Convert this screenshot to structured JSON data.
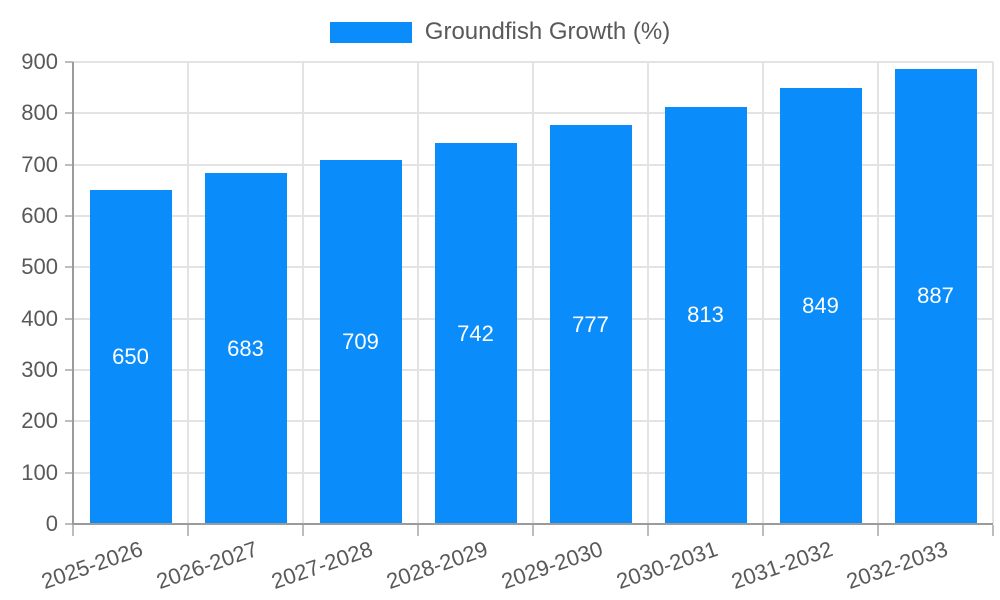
{
  "chart_data": {
    "type": "bar",
    "title": "",
    "legend": "Groundfish Growth (%)",
    "legend_position": "top",
    "categories": [
      "2025-2026",
      "2026-2027",
      "2027-2028",
      "2028-2029",
      "2029-2030",
      "2030-2031",
      "2031-2032",
      "2032-2033"
    ],
    "series": [
      {
        "name": "Groundfish Growth (%)",
        "values": [
          650,
          683,
          709,
          742,
          777,
          813,
          849,
          887
        ]
      }
    ],
    "data_labels": [
      650,
      683,
      709,
      742,
      777,
      813,
      849,
      887
    ],
    "xlabel": "",
    "ylabel": "",
    "ylim": [
      0,
      900
    ],
    "yticks": [
      0,
      100,
      200,
      300,
      400,
      500,
      600,
      700,
      800,
      900
    ],
    "grid": true,
    "x_label_rotation_deg": -19,
    "colors": {
      "bar": "#0a8cfa",
      "value_label": "#ffffff",
      "text": "#595959",
      "grid": "#e3e3e3",
      "axis": "#9b9b9b",
      "tick": "#bdbdbd",
      "background": "#ffffff"
    }
  }
}
